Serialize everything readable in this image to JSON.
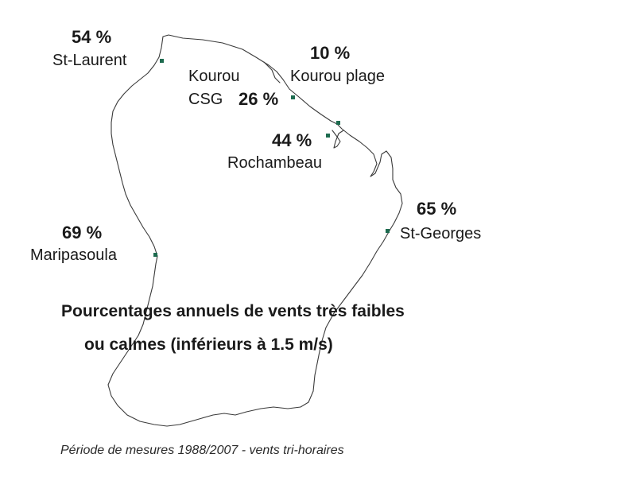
{
  "colors": {
    "marker": "#1d6b4f",
    "text": "#1a1a1a",
    "coast": "#3a3a3a"
  },
  "stations": {
    "st_laurent": {
      "name": "St-Laurent",
      "percent": "54 %",
      "value": 54
    },
    "kourou_csg": {
      "name_line1": "Kourou",
      "name_line2": "CSG",
      "percent": "26 %",
      "value": 26
    },
    "kourou_plage": {
      "name": "Kourou plage",
      "percent": "10 %",
      "value": 10
    },
    "rochambeau": {
      "name": "Rochambeau",
      "percent": "44 %",
      "value": 44
    },
    "st_georges": {
      "name": "St-Georges",
      "percent": "65 %",
      "value": 65
    },
    "maripasoula": {
      "name": "Maripasoula",
      "percent": "69 %",
      "value": 69
    }
  },
  "title": {
    "line1": "Pourcentages annuels de vents très faibles",
    "line2": "ou calmes (inférieurs à 1.5 m/s)"
  },
  "footnote": "Période de mesures 1988/2007 - vents tri-horaires"
}
